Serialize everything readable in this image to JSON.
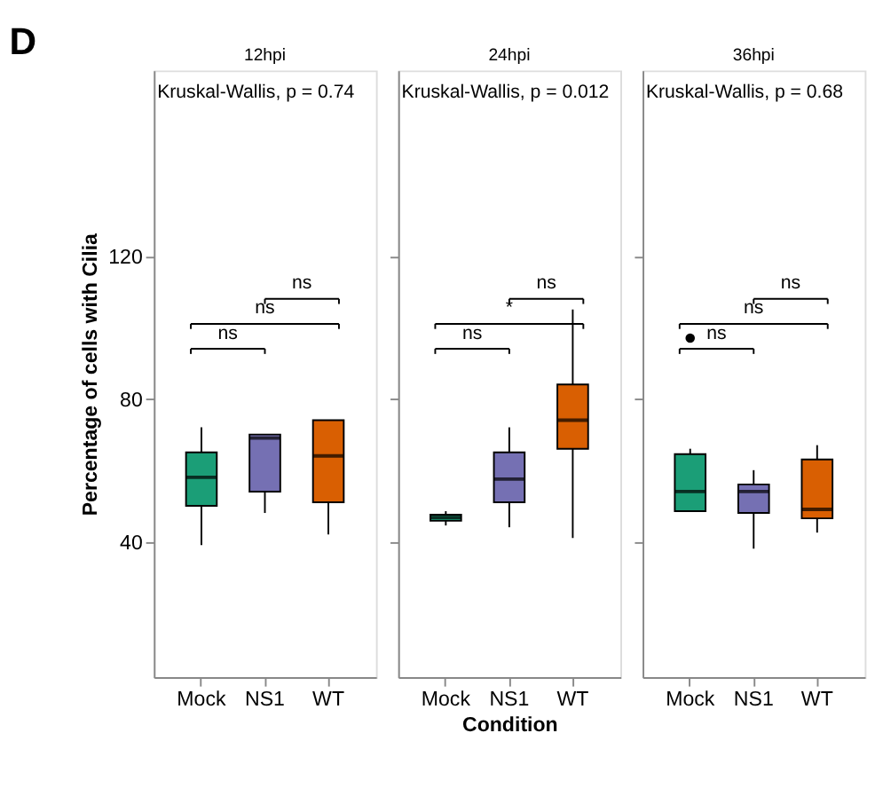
{
  "chart_data": [
    {
      "type": "box",
      "title": "12hpi",
      "ylabel": "Percentage of cells with Cilia",
      "categories": [
        "Mock",
        "NS1",
        "WT"
      ],
      "ylim": [
        2,
        172
      ],
      "yticks": [
        40,
        80,
        120
      ],
      "tick_labels": "xy",
      "grid": false,
      "series": [
        {
          "color": "#1b9e77",
          "boxes": [
            {
              "low": 39,
              "q1": 50,
              "median": 58,
              "q3": 65,
              "high": 72
            },
            null,
            null
          ]
        },
        {
          "color": "#7570b3",
          "boxes": [
            null,
            {
              "low": 48,
              "q1": 54,
              "median": 69,
              "q3": 70,
              "high": 70
            },
            null
          ]
        },
        {
          "color": "#d95f02",
          "boxes": [
            null,
            null,
            {
              "low": 42,
              "q1": 51,
              "median": 64,
              "q3": 74,
              "high": 74
            }
          ]
        }
      ],
      "annotations": [
        "D",
        "Kruskal-Wallis, p = 0.74",
        "ns",
        "ns",
        "ns"
      ]
    },
    {
      "type": "box",
      "title": "24hpi",
      "xlabel": "Condition",
      "categories": [
        "Mock",
        "NS1",
        "WT"
      ],
      "ylim": [
        2,
        172
      ],
      "yticks": [
        40,
        80,
        120
      ],
      "tick_labels": "x",
      "grid": false,
      "series": [
        {
          "color": "#1b9e77",
          "boxes": [
            {
              "low": 44.5,
              "q1": 45.8,
              "median": 46.7,
              "q3": 47.5,
              "high": 48.5
            },
            null,
            null
          ]
        },
        {
          "color": "#7570b3",
          "boxes": [
            null,
            {
              "low": 44,
              "q1": 51,
              "median": 57.5,
              "q3": 65,
              "high": 72
            },
            null
          ]
        },
        {
          "color": "#d95f02",
          "boxes": [
            null,
            null,
            {
              "low": 41,
              "q1": 66,
              "median": 74,
              "q3": 84,
              "high": 105
            }
          ]
        }
      ],
      "annotations": [
        "Kruskal-Wallis, p = 0.012",
        "ns",
        "*",
        "ns"
      ]
    },
    {
      "type": "box",
      "title": "36hpi",
      "categories": [
        "Mock",
        "NS1",
        "WT"
      ],
      "ylim": [
        2,
        172
      ],
      "yticks": [
        40,
        80,
        120
      ],
      "tick_labels": "x",
      "grid": false,
      "series": [
        {
          "color": "#1b9e77",
          "boxes": [
            {
              "low": 48.5,
              "q1": 48.5,
              "median": 54,
              "q3": 64.5,
              "high": 66,
              "outliers": [
                97
              ]
            },
            null,
            null
          ]
        },
        {
          "color": "#7570b3",
          "boxes": [
            null,
            {
              "low": 38,
              "q1": 48,
              "median": 54,
              "q3": 56,
              "high": 60
            },
            null
          ]
        },
        {
          "color": "#d95f02",
          "boxes": [
            null,
            null,
            {
              "low": 42.5,
              "q1": 46.5,
              "median": 49,
              "q3": 63,
              "high": 67
            }
          ]
        }
      ],
      "annotations": [
        "Kruskal-Wallis, p = 0.68",
        "ns",
        "ns",
        "ns"
      ]
    }
  ]
}
